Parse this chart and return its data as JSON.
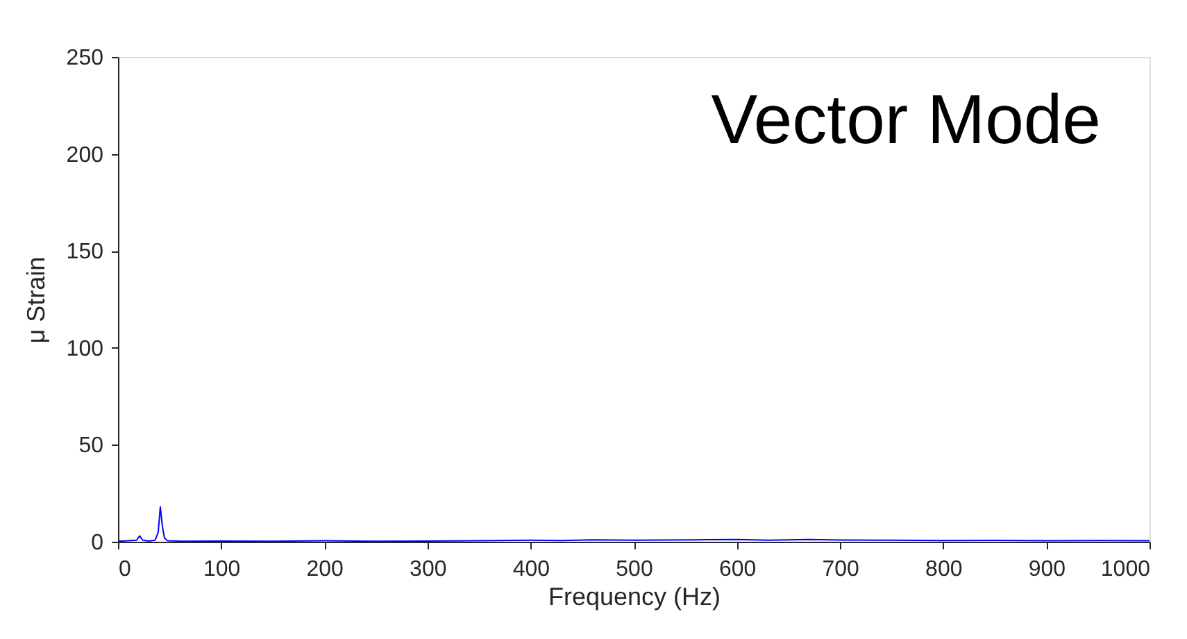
{
  "chart_data": {
    "type": "line",
    "xlabel": "Frequency (Hz)",
    "ylabel": "μ Strain",
    "annotations": [
      "Vector Mode"
    ],
    "x": [
      0,
      10,
      18,
      21,
      24,
      30,
      36,
      39,
      41,
      43,
      45,
      48,
      60,
      100,
      150,
      200,
      250,
      300,
      350,
      400,
      430,
      460,
      500,
      530,
      560,
      600,
      630,
      670,
      700,
      750,
      800,
      850,
      900,
      950,
      1000
    ],
    "series": [
      {
        "color": "#0000ff",
        "values": [
          0.3,
          0.5,
          0.8,
          3,
          0.8,
          0.4,
          0.8,
          5,
          18,
          8,
          2,
          0.5,
          0.3,
          0.4,
          0.3,
          0.5,
          0.3,
          0.4,
          0.5,
          0.8,
          0.6,
          1,
          0.8,
          0.9,
          1,
          1.2,
          0.8,
          1.2,
          0.9,
          0.8,
          0.6,
          0.7,
          0.5,
          0.6,
          0.5
        ]
      }
    ],
    "xlim": [
      0,
      1000
    ],
    "ylim": [
      0,
      250
    ],
    "xticks": [
      0,
      100,
      200,
      300,
      400,
      500,
      600,
      700,
      800,
      900,
      1000
    ],
    "yticks": [
      0,
      50,
      100,
      150,
      200,
      250
    ],
    "grid": false,
    "marker": "none",
    "line_style": "solid"
  }
}
